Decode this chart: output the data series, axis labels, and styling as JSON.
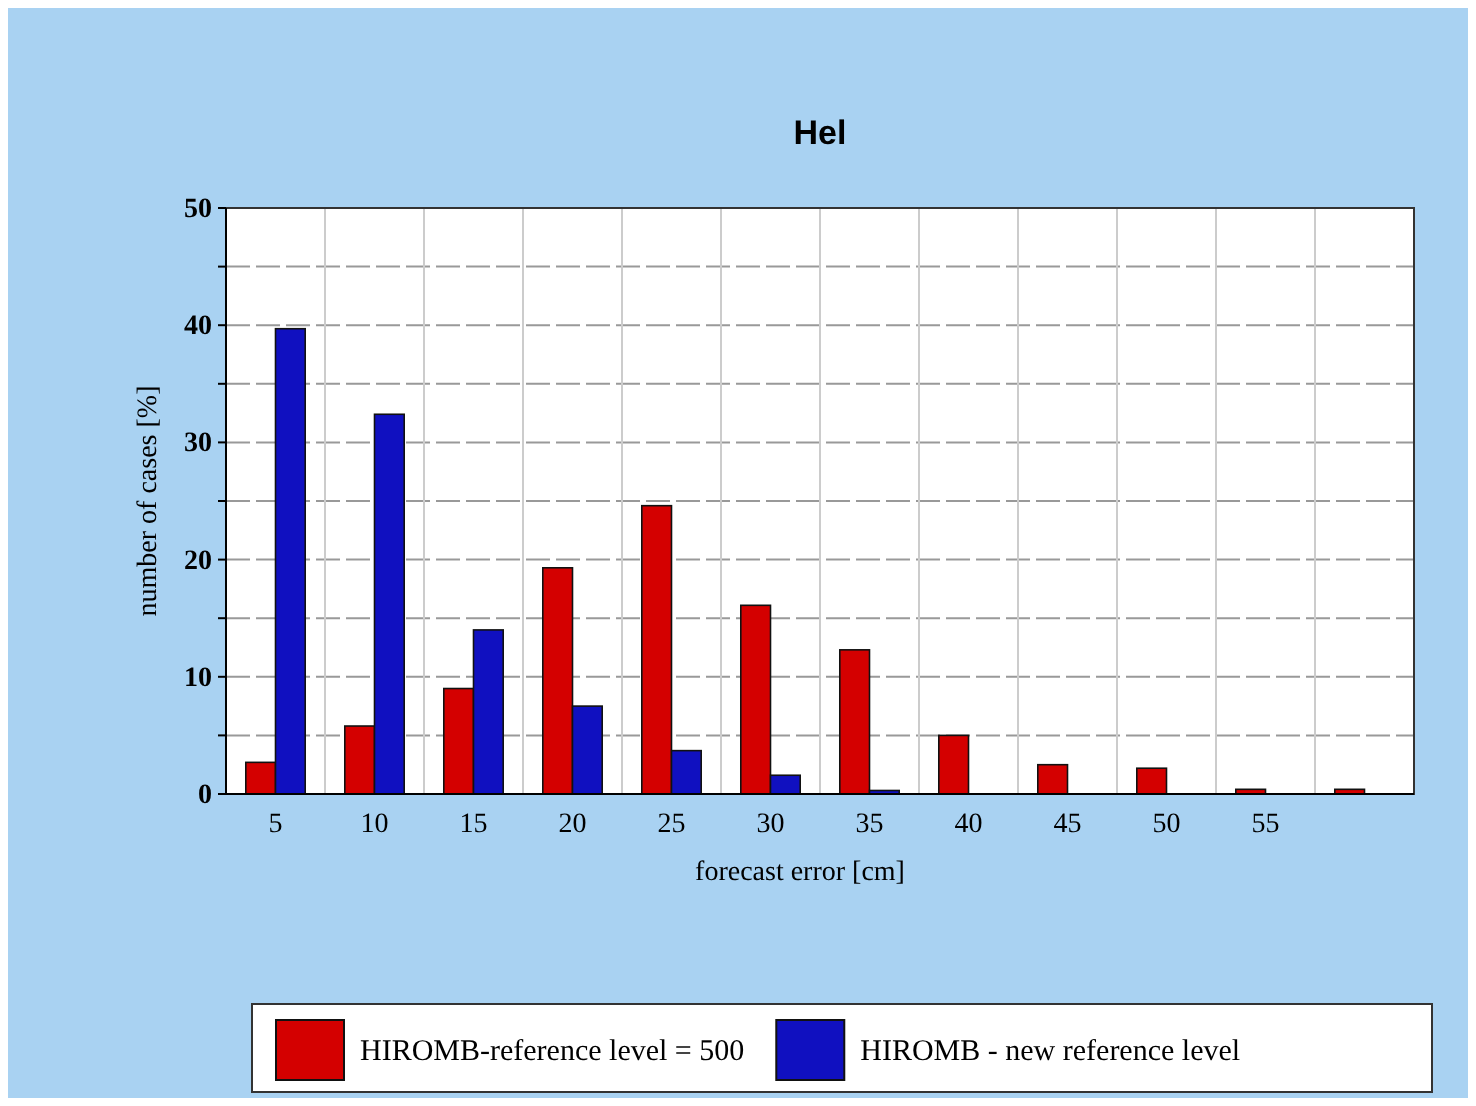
{
  "chart_data": {
    "type": "bar",
    "title": "Hel",
    "xlabel": "forecast error [cm]",
    "ylabel": "number of cases [%]",
    "categories": [
      "5",
      "10",
      "15",
      "20",
      "25",
      "30",
      "35",
      "40",
      "45",
      "50",
      "55",
      null
    ],
    "series": [
      {
        "name": "HIROMB-reference level = 500",
        "color": "#d40000",
        "values": [
          2.7,
          5.8,
          9,
          19.3,
          24.6,
          16.1,
          12.3,
          5,
          2.5,
          2.2,
          0.4,
          0.4
        ]
      },
      {
        "name": "HIROMB - new reference level",
        "color": "#1010c0",
        "values": [
          39.7,
          32.4,
          14,
          7.5,
          3.7,
          1.6,
          0.3,
          null,
          null,
          null,
          null,
          null
        ]
      }
    ],
    "ylim": [
      0,
      50
    ],
    "yticks": [
      0,
      {
        "value": 5,
        "label": null
      },
      10,
      {
        "value": 15,
        "label": null
      },
      20,
      {
        "value": 25,
        "label": null
      },
      30,
      {
        "value": 35,
        "label": null
      },
      40,
      {
        "value": 45,
        "label": null
      },
      50
    ],
    "grid": true,
    "legend": "bottom"
  }
}
